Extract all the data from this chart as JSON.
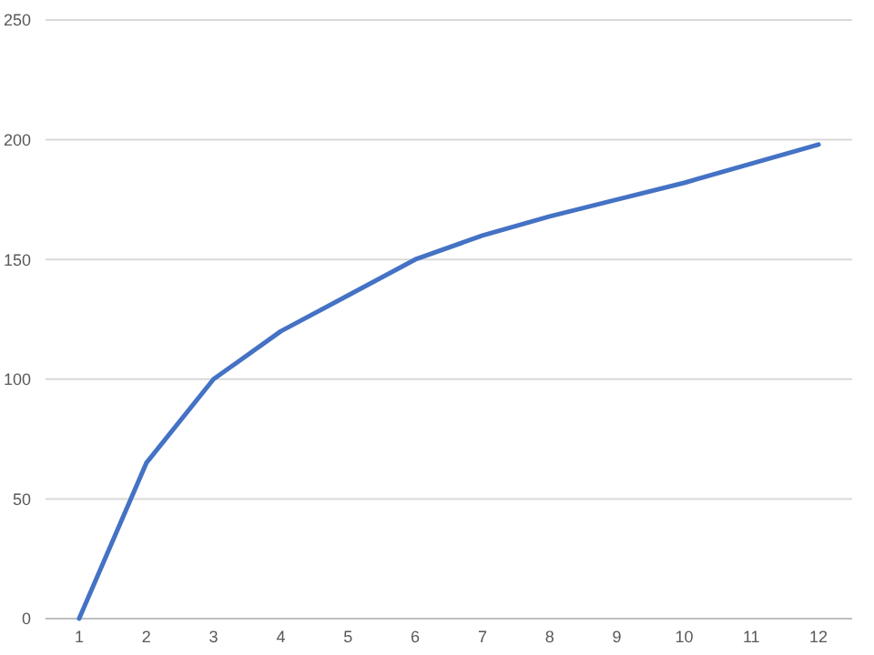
{
  "chart_data": {
    "type": "line",
    "x": [
      1,
      2,
      3,
      4,
      5,
      6,
      7,
      8,
      9,
      10,
      11,
      12
    ],
    "series": [
      {
        "color": "#4472c4",
        "values": [
          0,
          65,
          100,
          120,
          135,
          150,
          160,
          168,
          175,
          182,
          190,
          198
        ]
      }
    ],
    "xlim": [
      0.5,
      12.5
    ],
    "xticks": [
      1,
      2,
      3,
      4,
      5,
      6,
      7,
      8,
      9,
      10,
      11,
      12
    ],
    "ylim": [
      0,
      250
    ],
    "yticks": [
      0,
      50,
      100,
      150,
      200,
      250
    ],
    "grid": "y",
    "marker": "none",
    "line_style": "solid"
  }
}
